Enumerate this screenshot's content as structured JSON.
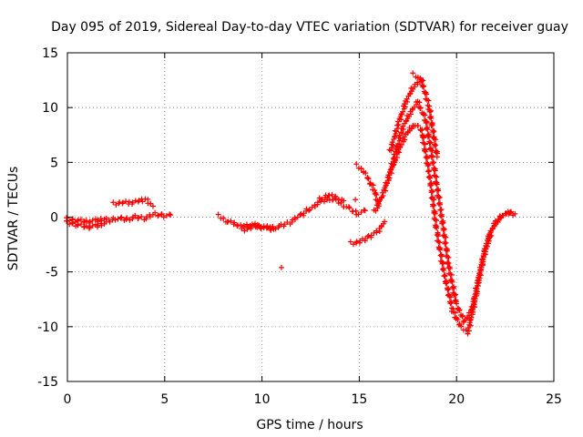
{
  "chart_data": {
    "type": "scatter",
    "title": "Day 095 of 2019, Sidereal Day-to-day VTEC variation (SDTVAR) for receiver guay",
    "xlabel": "GPS time / hours",
    "ylabel": "SDTVAR / TECUs",
    "xlim": [
      0,
      25
    ],
    "ylim": [
      -15,
      15
    ],
    "xticks": [
      "0",
      "5",
      "10",
      "15",
      "20",
      "25"
    ],
    "yticks": [
      "-15",
      "-10",
      "-5",
      "0",
      "5",
      "10",
      "15"
    ],
    "grid": true,
    "marker": "plus",
    "colors": {
      "series": "#ff0000",
      "axis": "#000000",
      "grid": "#a0a0a0"
    },
    "series": [
      {
        "name": "seg1",
        "x": [
          0,
          0.5,
          1.0,
          1.5,
          2.0,
          2.5,
          3.0,
          3.5,
          4.0,
          4.5,
          5.0,
          5.3
        ],
        "y": [
          -0.5,
          -0.7,
          -0.9,
          -0.8,
          -0.5,
          -0.1,
          -0.2,
          0.0,
          -0.1,
          0.3,
          0.1,
          0.2
        ]
      },
      {
        "name": "seg2",
        "x": [
          0,
          0.5,
          1.0,
          1.5,
          2.0
        ],
        "y": [
          -0.2,
          -0.3,
          -0.4,
          -0.3,
          -0.1
        ]
      },
      {
        "name": "seg3",
        "x": [
          2.4,
          2.8,
          3.2,
          3.6,
          4.0,
          4.4
        ],
        "y": [
          1.2,
          1.3,
          1.3,
          1.5,
          1.6,
          1.0
        ]
      },
      {
        "name": "seg4",
        "x": [
          7.8,
          8.2,
          8.6,
          9.0,
          9.5,
          10.0,
          10.5,
          11.0,
          11.5,
          12.0,
          12.5,
          13.0,
          13.5,
          14.0,
          14.5,
          15.0,
          15.3
        ],
        "y": [
          0.1,
          -0.4,
          -0.6,
          -0.8,
          -0.7,
          -0.9,
          -1.0,
          -0.8,
          -0.4,
          0.2,
          0.8,
          1.4,
          1.7,
          1.3,
          0.7,
          0.3,
          0.6
        ]
      },
      {
        "name": "seg5",
        "x": [
          9.0,
          9.4,
          9.8,
          10.2,
          10.6
        ],
        "y": [
          -1.2,
          -1.0,
          -0.8,
          -0.9,
          -1.1
        ]
      },
      {
        "name": "seg6",
        "x": [
          13.0,
          13.4,
          13.8,
          14.2
        ],
        "y": [
          1.6,
          2.0,
          1.8,
          1.5
        ]
      },
      {
        "name": "seg7",
        "x": [
          14.9,
          15.2,
          15.5,
          15.8,
          16.0
        ],
        "y": [
          4.7,
          4.2,
          3.4,
          2.3,
          1.2
        ]
      },
      {
        "name": "seg8",
        "x": [
          14.6,
          15.0,
          15.5,
          16.0,
          16.3
        ],
        "y": [
          -2.4,
          -2.3,
          -1.8,
          -1.2,
          -0.4
        ]
      },
      {
        "name": "seg9",
        "x": [
          15.8,
          16.2,
          16.6,
          17.0,
          17.4,
          17.8,
          18.2,
          18.6,
          19.0,
          19.4,
          19.8,
          20.2,
          20.6,
          21.0,
          21.4,
          21.8,
          22.2,
          22.6,
          23.0
        ],
        "y": [
          0.5,
          2.0,
          4.0,
          6.0,
          7.5,
          8.5,
          8.0,
          4.0,
          -1.5,
          -5.5,
          -8.5,
          -10.0,
          -10.5,
          -7.0,
          -3.5,
          -1.2,
          0.0,
          0.4,
          0.3
        ]
      },
      {
        "name": "seg10",
        "x": [
          16.4,
          16.8,
          17.2,
          17.6,
          18.0,
          18.4,
          18.8,
          19.2,
          19.6,
          20.0,
          20.4,
          20.8,
          21.2,
          21.6,
          22.0,
          22.4,
          22.8
        ],
        "y": [
          3.0,
          5.5,
          8.0,
          9.5,
          10.5,
          9.0,
          5.0,
          0.5,
          -4.5,
          -8.0,
          -9.5,
          -8.5,
          -5.0,
          -2.0,
          -0.5,
          0.2,
          0.5
        ]
      },
      {
        "name": "seg11",
        "x": [
          16.6,
          17.0,
          17.4,
          17.8,
          18.2,
          18.6,
          19.0
        ],
        "y": [
          6.0,
          8.5,
          10.5,
          12.0,
          12.5,
          10.0,
          5.5
        ]
      },
      {
        "name": "seg12",
        "x": [
          17.8,
          18.0,
          18.2
        ],
        "y": [
          13.0,
          12.8,
          12.4
        ]
      },
      {
        "name": "outlier1",
        "x": [
          11.0
        ],
        "y": [
          -4.6
        ]
      },
      {
        "name": "outlier2",
        "x": [
          14.8
        ],
        "y": [
          1.6
        ]
      }
    ]
  }
}
